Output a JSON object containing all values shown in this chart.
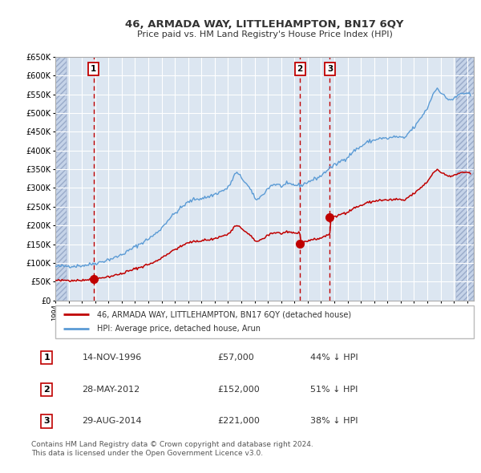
{
  "title": "46, ARMADA WAY, LITTLEHAMPTON, BN17 6QY",
  "subtitle": "Price paid vs. HM Land Registry's House Price Index (HPI)",
  "legend_line1": "46, ARMADA WAY, LITTLEHAMPTON, BN17 6QY (detached house)",
  "legend_line2": "HPI: Average price, detached house, Arun",
  "footer": "Contains HM Land Registry data © Crown copyright and database right 2024.\nThis data is licensed under the Open Government Licence v3.0.",
  "sale_prices": [
    57000,
    152000,
    221000
  ],
  "sale_labels": [
    "1",
    "2",
    "3"
  ],
  "sale_date_floats": [
    1996.875,
    2012.4167,
    2014.6667
  ],
  "table_rows": [
    [
      "1",
      "14-NOV-1996",
      "£57,000",
      "44% ↓ HPI"
    ],
    [
      "2",
      "28-MAY-2012",
      "£152,000",
      "51% ↓ HPI"
    ],
    [
      "3",
      "29-AUG-2014",
      "£221,000",
      "38% ↓ HPI"
    ]
  ],
  "hpi_line_color": "#5b9bd5",
  "price_line_color": "#c00000",
  "vline_color": "#c00000",
  "bg_color": "#dce6f1",
  "grid_color": "#ffffff",
  "hatch_bg_color": "#c5d3e8",
  "ylim": [
    0,
    650000
  ],
  "yticks": [
    0,
    50000,
    100000,
    150000,
    200000,
    250000,
    300000,
    350000,
    400000,
    450000,
    500000,
    550000,
    600000,
    650000
  ],
  "xmin": 1994.0,
  "xmax": 2025.5,
  "hatch_left_end": 1994.83,
  "hatch_right_start": 2024.17
}
